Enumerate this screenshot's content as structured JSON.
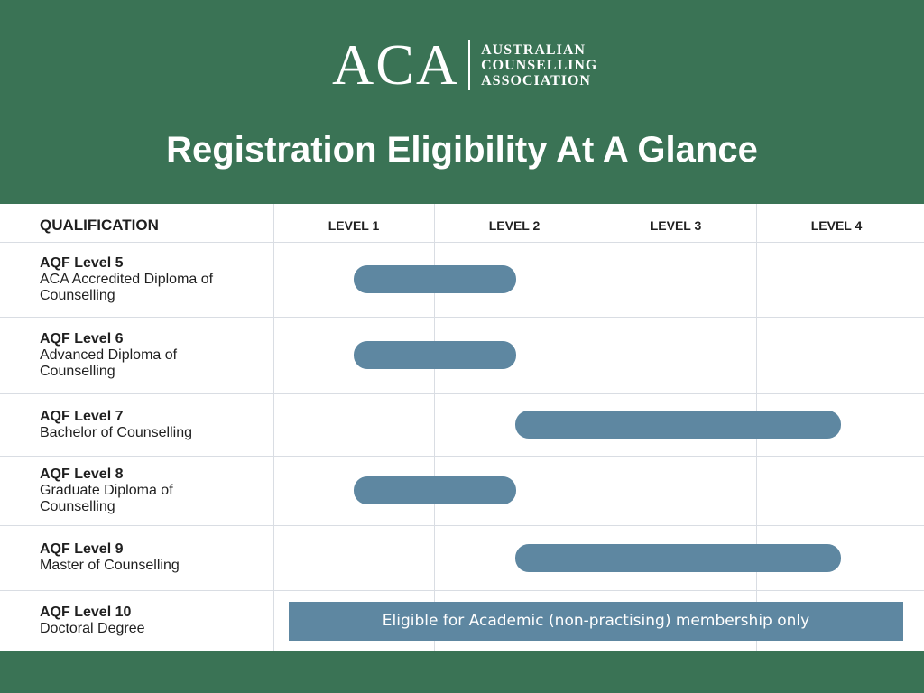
{
  "brand": {
    "mark": "ACA",
    "name_lines": [
      "AUSTRALIAN",
      "COUNSELLING",
      "ASSOCIATION"
    ]
  },
  "title": "Registration Eligibility At A Glance",
  "colors": {
    "background": "#3a7355",
    "bar": "#5e87a1",
    "table": "#ffffff"
  },
  "chart_data": {
    "type": "bar",
    "orientation": "horizontal-range",
    "row_header": "QUALIFICATION",
    "columns": [
      "LEVEL 1",
      "LEVEL 2",
      "LEVEL 3",
      "LEVEL 4"
    ],
    "rows": [
      {
        "level": "AQF Level 5",
        "name_lines": [
          "ACA Accredited Diploma of",
          "Counselling"
        ],
        "range": [
          1,
          2
        ]
      },
      {
        "level": "AQF Level 6",
        "name_lines": [
          "Advanced Diploma of",
          "Counselling"
        ],
        "range": [
          1,
          2
        ]
      },
      {
        "level": "AQF Level 7",
        "name_lines": [
          "Bachelor of Counselling"
        ],
        "range": [
          2,
          4
        ]
      },
      {
        "level": "AQF Level 8",
        "name_lines": [
          "Graduate Diploma of",
          "Counselling"
        ],
        "range": [
          1,
          2
        ]
      },
      {
        "level": "AQF Level 9",
        "name_lines": [
          "Master of Counselling"
        ],
        "range": [
          2,
          4
        ]
      },
      {
        "level": "AQF Level 10",
        "name_lines": [
          "Doctoral Degree"
        ],
        "range": null,
        "banner": "Eligible for Academic (non-practising) membership only"
      }
    ]
  }
}
